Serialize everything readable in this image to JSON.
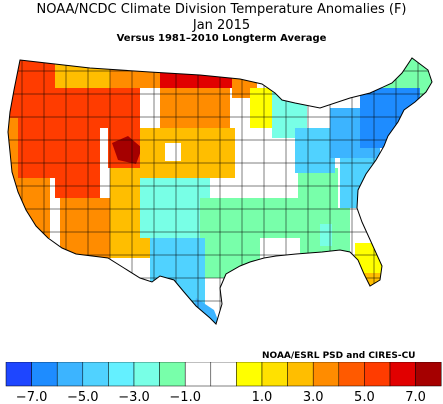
{
  "title": "NOAA/NCDC Climate Division Temperature Anomalies (F)",
  "period": "Jan 2015",
  "subtitle": "Versus 1981–2010 Longterm Average",
  "credit": "NOAA/ESRL PSD and CIRES-CU",
  "legend": {
    "colors": [
      "#1e46ff",
      "#1e8cff",
      "#3cb4ff",
      "#50d2ff",
      "#64f0ff",
      "#78ffe6",
      "#78ffaa",
      "#ffffff",
      "#ffffff",
      "#ffff00",
      "#ffe100",
      "#ffbe00",
      "#ff8c00",
      "#ff5a00",
      "#ff3c00",
      "#e10000",
      "#a50000"
    ],
    "tick_labels": [
      "−7.0",
      "−5.0",
      "−3.0",
      "−1.0",
      "1.0",
      "3.0",
      "5.0",
      "7.0"
    ]
  },
  "colors": {
    "very_warm": "#e10000",
    "warm": "#ff3c00",
    "orange": "#ff8c00",
    "amber": "#ffbe00",
    "yellow_orange": "#ffe100",
    "yellow": "#ffff00",
    "neutral": "#ffffff",
    "mint": "#78ffaa",
    "aqua": "#78ffe6",
    "cyan": "#50d2ff",
    "sky": "#3cb4ff",
    "blue": "#1e8cff",
    "deep_blue": "#1e46ff",
    "hot_core": "#a50000"
  }
}
